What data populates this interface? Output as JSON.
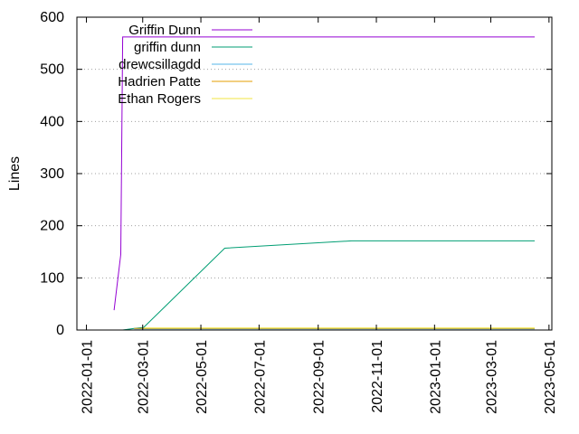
{
  "chart_data": {
    "type": "line",
    "title": "",
    "xlabel": "",
    "ylabel": "Lines",
    "ylim": [
      0,
      600
    ],
    "yticks": [
      0,
      100,
      200,
      300,
      400,
      500,
      600
    ],
    "xlim": [
      "2021-12-22",
      "2023-05-04"
    ],
    "xticks": [
      "2022-01-01",
      "2022-03-01",
      "2022-05-01",
      "2022-07-01",
      "2022-09-01",
      "2022-11-01",
      "2023-01-01",
      "2023-03-01",
      "2023-05-01"
    ],
    "grid": "horizontal dotted",
    "legend_position": "top-left",
    "series": [
      {
        "name": "Griffin Dunn",
        "color": "#9400d3",
        "points": [
          [
            "2022-01-30",
            38
          ],
          [
            "2022-02-06",
            145
          ],
          [
            "2022-02-08",
            562
          ],
          [
            "2023-04-16",
            562
          ]
        ]
      },
      {
        "name": "griffin dunn",
        "color": "#009e73",
        "points": [
          [
            "2022-02-08",
            0
          ],
          [
            "2022-02-20",
            3
          ],
          [
            "2022-03-02",
            5
          ],
          [
            "2022-05-26",
            157
          ],
          [
            "2022-10-06",
            171
          ],
          [
            "2023-04-16",
            171
          ]
        ]
      },
      {
        "name": "drewcsillagdd",
        "color": "#56b4e9",
        "points": [
          [
            "2022-02-20",
            2
          ],
          [
            "2023-04-16",
            2
          ]
        ]
      },
      {
        "name": "Hadrien Patte",
        "color": "#e69f00",
        "points": [
          [
            "2022-02-20",
            3
          ],
          [
            "2023-04-16",
            3
          ]
        ]
      },
      {
        "name": "Ethan Rogers",
        "color": "#f0e442",
        "points": [
          [
            "2022-03-02",
            4
          ],
          [
            "2023-04-16",
            4
          ]
        ]
      }
    ]
  }
}
